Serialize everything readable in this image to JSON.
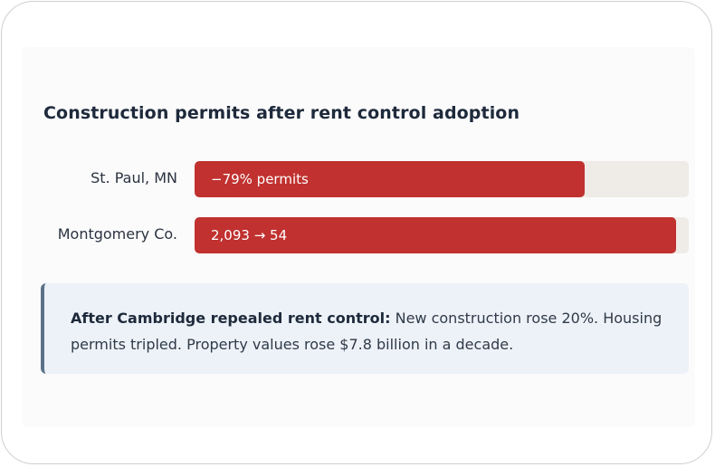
{
  "chart_data": {
    "type": "bar",
    "title": "Construction permits after rent control adoption",
    "categories": [
      "St. Paul, MN",
      "Montgomery Co."
    ],
    "values": [
      79,
      97.4
    ],
    "bar_labels": [
      "−79% permits",
      "2,093 → 54"
    ],
    "xlim": [
      0,
      100
    ],
    "colors": {
      "fill": "#c0312f",
      "track": "#efece7"
    }
  },
  "callout": {
    "heading": "After Cambridge repealed rent control:",
    "text": "New construction rose 20%. Housing permits tripled. Property values rose $7.8 billion in a decade."
  },
  "colors": {
    "accent_border": "#5b7287",
    "callout_bg": "#edf2f8"
  }
}
